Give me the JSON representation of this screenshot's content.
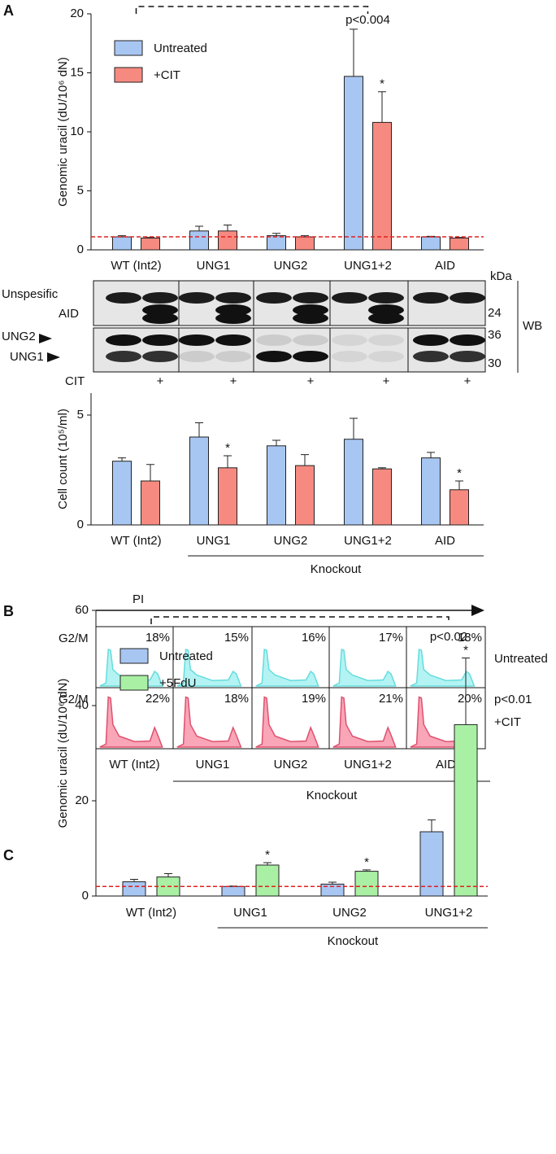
{
  "panel_labels": [
    "A",
    "B",
    "C"
  ],
  "chart_data": [
    {
      "type": "bar",
      "ylabel": "Genomic uracil (dU/10⁶ dN)",
      "categories": [
        "WT (Int2)",
        "UNG1",
        "UNG2",
        "UNG1+2",
        "AID"
      ],
      "series": [
        {
          "name": "Untreated",
          "color": "#a8c6f2",
          "values": [
            1.1,
            1.6,
            1.2,
            14.7,
            1.1
          ],
          "errors": [
            0.1,
            0.4,
            0.2,
            4.0,
            0.05
          ]
        },
        {
          "name": "+CIT",
          "color": "#f78a80",
          "values": [
            1.0,
            1.6,
            1.1,
            10.8,
            1.0
          ],
          "errors": [
            0.05,
            0.5,
            0.1,
            2.6,
            0.05
          ],
          "significance": [
            null,
            null,
            null,
            "*",
            null
          ]
        }
      ],
      "ylim": [
        0,
        20
      ],
      "yticks": [
        0,
        5,
        10,
        15,
        20
      ],
      "reference_line": 1.1,
      "reference_color": "#e02020",
      "bracket": {
        "label": "p<0.004",
        "from": "WT (Int2)",
        "to": "UNG1+2"
      },
      "legend": "upper left"
    },
    {
      "type": "bar",
      "ylabel": "Cell count (10⁵/ml)",
      "categories": [
        "WT (Int2)",
        "UNG1",
        "UNG2",
        "UNG1+2",
        "AID"
      ],
      "series": [
        {
          "color": "#a8c6f2",
          "values": [
            2.9,
            4.0,
            3.6,
            3.9,
            3.05
          ],
          "errors": [
            0.15,
            0.65,
            0.25,
            0.95,
            0.25
          ]
        },
        {
          "color": "#f78a80",
          "values": [
            2.0,
            2.6,
            2.7,
            2.55,
            1.6
          ],
          "errors": [
            0.75,
            0.55,
            0.5,
            0.05,
            0.4
          ],
          "significance": [
            null,
            "*",
            null,
            null,
            "*"
          ]
        }
      ],
      "ylim": [
        0,
        6
      ],
      "yticks": [
        0,
        5
      ],
      "group_label": {
        "text": "Knockout",
        "from": "UNG1",
        "to": "AID"
      }
    },
    {
      "type": "bar",
      "ylabel": "Genomic uracil (dU/10⁶ dN)",
      "categories": [
        "WT (Int2)",
        "UNG1",
        "UNG2",
        "UNG1+2"
      ],
      "series": [
        {
          "name": "Untreated",
          "color": "#a8c6f2",
          "values": [
            3.0,
            2.0,
            2.5,
            13.5
          ],
          "errors": [
            0.5,
            0.1,
            0.4,
            2.5
          ]
        },
        {
          "name": "+5FdU",
          "color": "#a9f0a4",
          "values": [
            4.0,
            6.5,
            5.2,
            36
          ],
          "errors": [
            0.7,
            0.5,
            0.3,
            14
          ],
          "significance": [
            null,
            "*",
            "*",
            "*"
          ]
        }
      ],
      "ylim": [
        0,
        60
      ],
      "yticks": [
        0,
        20,
        40,
        60
      ],
      "reference_line": 2,
      "reference_color": "#e02020",
      "bracket": {
        "label": "p<0.02",
        "from": "WT (Int2)",
        "to": "UNG1+2"
      },
      "group_label": {
        "text": "Knockout",
        "from": "UNG1",
        "to": "UNG1+2"
      },
      "legend": "upper left"
    }
  ],
  "western_blot": {
    "row_labels": [
      "Unspesific",
      "AID",
      "UNG2",
      "UNG1"
    ],
    "kda_label": "kDa",
    "markers": [
      "24",
      "36",
      "30"
    ],
    "method": "WB",
    "treatment_label": "CIT",
    "treatment_marks": [
      "+",
      "+",
      "+",
      "+",
      "+"
    ]
  },
  "flow": {
    "axis_label": "PI",
    "row_labels": [
      "G2/M",
      "G2/M"
    ],
    "conditions": [
      "Untreated",
      "+CIT"
    ],
    "p_value": "p<0.01",
    "percentages": [
      [
        "18%",
        "15%",
        "16%",
        "17%",
        "18%"
      ],
      [
        "22%",
        "18%",
        "19%",
        "21%",
        "20%"
      ]
    ],
    "categories": [
      "WT (Int2)",
      "UNG1",
      "UNG2",
      "UNG1+2",
      "AID"
    ],
    "group_label": "Knockout"
  }
}
